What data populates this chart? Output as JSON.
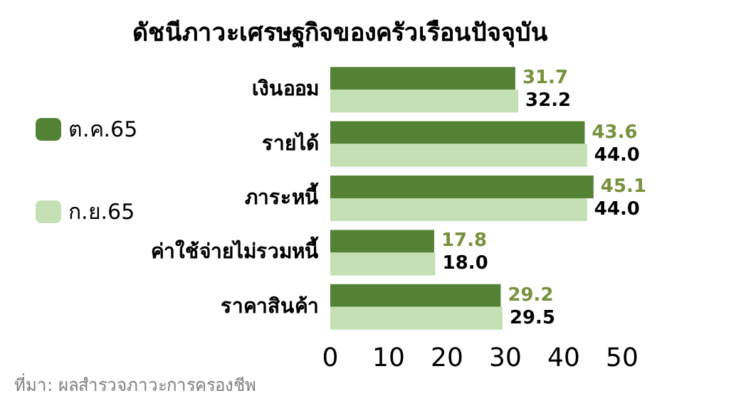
{
  "chart_data": {
    "type": "bar",
    "orientation": "horizontal",
    "title": "ดัชนีภาวะเศรษฐกิจของครัวเรือนปัจจุบัน",
    "categories": [
      "เงินออม",
      "รายได้",
      "ภาระหนี้",
      "ค่าใช้จ่ายไม่รวมหนี้",
      "ราคาสินค้า"
    ],
    "series": [
      {
        "name": "ต.ค.65",
        "color": "#548235",
        "values": [
          31.7,
          43.6,
          45.1,
          17.8,
          29.2
        ],
        "value_labels": [
          "31.7",
          "43.6",
          "45.1",
          "17.8",
          "29.2"
        ]
      },
      {
        "name": "ก.ย.65",
        "color": "#c5e0b4",
        "values": [
          32.2,
          44.0,
          44.0,
          18.0,
          29.5
        ],
        "value_labels": [
          "32.2",
          "44.0",
          "44.0",
          "18.0",
          "29.5"
        ]
      }
    ],
    "xlim": [
      0,
      50
    ],
    "xticks": [
      0,
      10,
      20,
      30,
      40,
      50
    ],
    "legend": "left",
    "grid": false,
    "annotations": [
      "ที่มา: ผลสำรวจภาวะการครองชีพ"
    ]
  }
}
